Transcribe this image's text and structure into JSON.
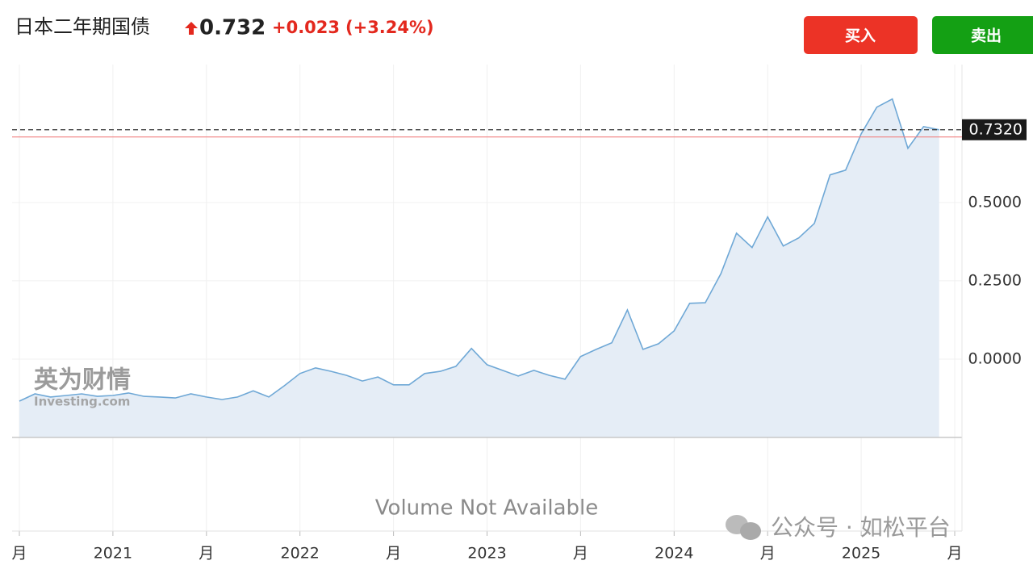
{
  "header": {
    "title": "日本二年期国债",
    "price": "0.732",
    "change": "+0.023",
    "change_pct": "(+3.24%)"
  },
  "buttons": {
    "buy": "买入",
    "sell": "卖出"
  },
  "logo": {
    "cn": "英为财情",
    "en": "Investing.com"
  },
  "watermark": "公众号 · 如松平台",
  "chart_data": {
    "type": "area",
    "values": [
      -0.134,
      -0.111,
      -0.121,
      -0.116,
      -0.111,
      -0.119,
      -0.116,
      -0.108,
      -0.119,
      -0.121,
      -0.124,
      -0.111,
      -0.121,
      -0.129,
      -0.121,
      -0.101,
      -0.121,
      -0.085,
      -0.046,
      -0.028,
      -0.039,
      -0.052,
      -0.07,
      -0.057,
      -0.082,
      -0.082,
      -0.046,
      -0.039,
      -0.023,
      0.034,
      -0.018,
      -0.036,
      -0.054,
      -0.036,
      -0.052,
      -0.064,
      0.008,
      0.031,
      0.052,
      0.157,
      0.031,
      0.049,
      0.09,
      0.178,
      0.18,
      0.273,
      0.402,
      0.356,
      0.454,
      0.361,
      0.387,
      0.433,
      0.588,
      0.603,
      0.719,
      0.804,
      0.83,
      0.673,
      0.742,
      0.732
    ],
    "color": "#6fa8d6",
    "ylim": [
      -0.25,
      0.94
    ],
    "yticks": [
      {
        "value": 0,
        "label": "0.0000"
      },
      {
        "value": 0.25,
        "label": "0.2500"
      },
      {
        "value": 0.5,
        "label": "0.5000"
      }
    ],
    "xlim": [
      -0.05,
      60.5
    ],
    "xticks": [
      {
        "value": 0,
        "label": "月"
      },
      {
        "value": 6,
        "label": "2021"
      },
      {
        "value": 12,
        "label": "月"
      },
      {
        "value": 18,
        "label": "2022"
      },
      {
        "value": 24,
        "label": "月"
      },
      {
        "value": 30,
        "label": "2023"
      },
      {
        "value": 36,
        "label": "月"
      },
      {
        "value": 42,
        "label": "2024"
      },
      {
        "value": 48,
        "label": "月"
      },
      {
        "value": 54,
        "label": "2025"
      },
      {
        "value": 60,
        "label": "月"
      }
    ],
    "current": {
      "value": 0.732,
      "label": "0.7320"
    },
    "reference_line": 0.709,
    "volume_note": "Volume Not Available",
    "grid": true
  }
}
